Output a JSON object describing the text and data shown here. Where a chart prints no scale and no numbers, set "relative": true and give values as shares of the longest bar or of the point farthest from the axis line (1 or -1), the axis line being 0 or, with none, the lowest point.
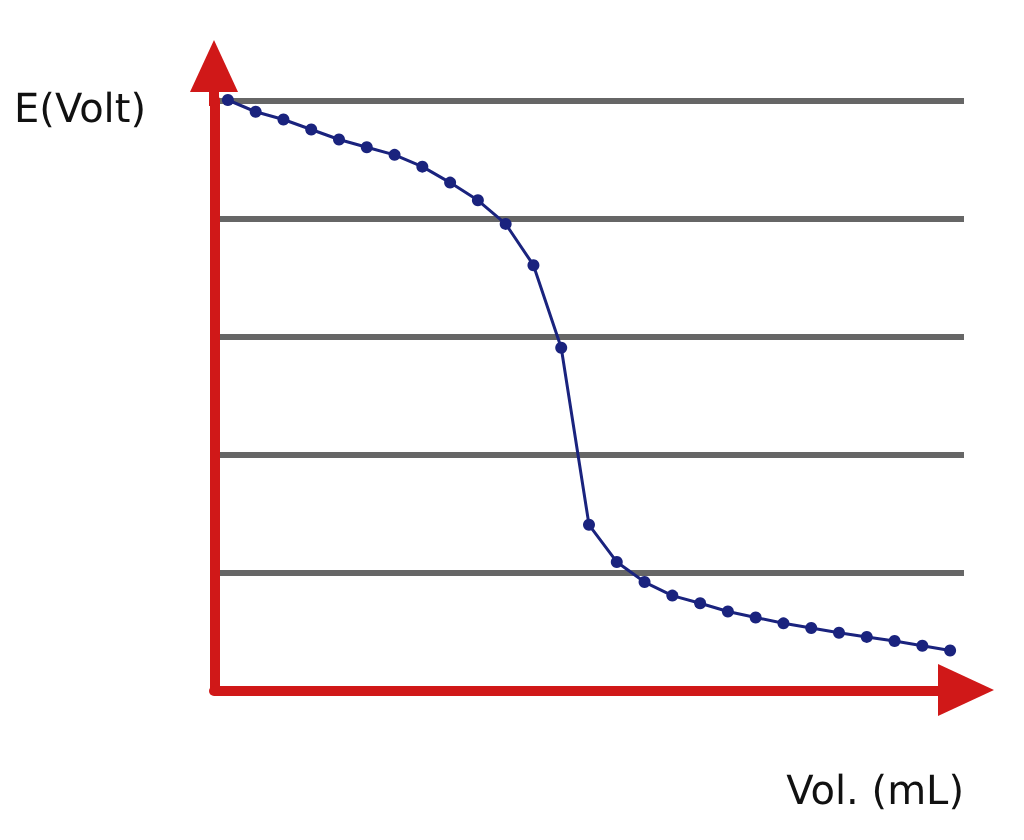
{
  "chart_data": {
    "type": "line",
    "relative": true,
    "xlabel": "Vol. (mL)",
    "ylabel": "E(Volt)",
    "grid": "y",
    "marker": "circle",
    "line_style": "solid",
    "categories": [
      null,
      null,
      null,
      null,
      null,
      null,
      null,
      null,
      null,
      null,
      null,
      null,
      null,
      null,
      null,
      null,
      null,
      null,
      null,
      null,
      null,
      null,
      null,
      null,
      null,
      null,
      null
    ],
    "series": [
      {
        "color": "#1a237e",
        "values": [
          1.0,
          0.98,
          0.967,
          0.95,
          0.933,
          0.92,
          0.907,
          0.887,
          0.86,
          0.83,
          0.79,
          0.72,
          0.58,
          0.28,
          0.217,
          0.183,
          0.16,
          0.147,
          0.133,
          0.123,
          0.113,
          0.105,
          0.097,
          0.09,
          0.083,
          0.075,
          0.067
        ]
      }
    ]
  }
}
